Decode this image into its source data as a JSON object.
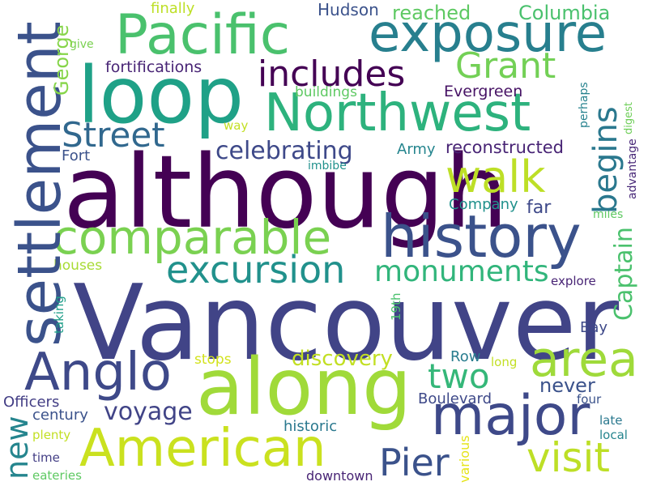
{
  "words": [
    {
      "text": "Vancouver",
      "color": "#414487"
    },
    {
      "text": "although",
      "color": "#440154"
    },
    {
      "text": "along",
      "color": "#a0da39"
    },
    {
      "text": "loop",
      "color": "#1fa187"
    },
    {
      "text": "settlement",
      "color": "#3b528b"
    },
    {
      "text": "history",
      "color": "#3b528b"
    },
    {
      "text": "Pacific",
      "color": "#4ac16d"
    },
    {
      "text": "exposure",
      "color": "#277f8e"
    },
    {
      "text": "Northwest",
      "color": "#2db27d"
    },
    {
      "text": "American",
      "color": "#cae11f"
    },
    {
      "text": "major",
      "color": "#3e4989"
    },
    {
      "text": "comparable",
      "color": "#7ad151"
    },
    {
      "text": "Anglo",
      "color": "#3e4989"
    },
    {
      "text": "area",
      "color": "#9fda3a"
    },
    {
      "text": "walk",
      "color": "#bddf26"
    },
    {
      "text": "excursion",
      "color": "#21918c"
    },
    {
      "text": "includes",
      "color": "#440154"
    },
    {
      "text": "Grant",
      "color": "#73d056"
    },
    {
      "text": "visit",
      "color": "#bddf26"
    },
    {
      "text": "Pier",
      "color": "#3b528b"
    },
    {
      "text": "two",
      "color": "#35b779"
    },
    {
      "text": "Street",
      "color": "#31688e"
    },
    {
      "text": "monuments",
      "color": "#31b57b"
    },
    {
      "text": "begins",
      "color": "#2a788e"
    },
    {
      "text": "Captain",
      "color": "#4ac16d"
    },
    {
      "text": "new",
      "color": "#25858e"
    },
    {
      "text": "voyage",
      "color": "#414487"
    },
    {
      "text": "celebrating",
      "color": "#3e4989"
    },
    {
      "text": "discovery",
      "color": "#c2df23"
    },
    {
      "text": "George",
      "color": "#86d549"
    },
    {
      "text": "reconstructed",
      "color": "#482475"
    },
    {
      "text": "never",
      "color": "#3b528b"
    },
    {
      "text": "reached",
      "color": "#5ec962"
    },
    {
      "text": "Columbia",
      "color": "#4ac16d"
    },
    {
      "text": "Hudson",
      "color": "#3b528b"
    },
    {
      "text": "fortifications",
      "color": "#482475"
    },
    {
      "text": "Evergreen",
      "color": "#471365"
    },
    {
      "text": "Army",
      "color": "#25858e"
    },
    {
      "text": "Company",
      "color": "#21918c"
    },
    {
      "text": "far",
      "color": "#3e4989"
    },
    {
      "text": "Boulevard",
      "color": "#3e4989"
    },
    {
      "text": "Officers",
      "color": "#433e85"
    },
    {
      "text": "Row",
      "color": "#287c8e"
    },
    {
      "text": "Bay",
      "color": "#3e4989"
    },
    {
      "text": "century",
      "color": "#3b528b"
    },
    {
      "text": "historic",
      "color": "#2a788e"
    },
    {
      "text": "finally",
      "color": "#bddf26"
    },
    {
      "text": "buildings",
      "color": "#5ec962"
    },
    {
      "text": "Fort",
      "color": "#3b528b"
    },
    {
      "text": "houses",
      "color": "#a8db34"
    },
    {
      "text": "stops",
      "color": "#d2e21b"
    },
    {
      "text": "explore",
      "color": "#482475"
    },
    {
      "text": "long",
      "color": "#c2df23"
    },
    {
      "text": "four",
      "color": "#3b528b"
    },
    {
      "text": "late",
      "color": "#2a788e"
    },
    {
      "text": "local",
      "color": "#25858e"
    },
    {
      "text": "plenty",
      "color": "#c2df23"
    },
    {
      "text": "time",
      "color": "#433e85"
    },
    {
      "text": "eateries",
      "color": "#5ec962"
    },
    {
      "text": "downtown",
      "color": "#482475"
    },
    {
      "text": "various",
      "color": "#e5e419"
    },
    {
      "text": "give",
      "color": "#7ad151"
    },
    {
      "text": "way",
      "color": "#c2df23"
    },
    {
      "text": "imbibe",
      "color": "#21918c"
    },
    {
      "text": "miles",
      "color": "#5ec962"
    },
    {
      "text": "perhaps",
      "color": "#26828e"
    },
    {
      "text": "digest",
      "color": "#6ece58"
    },
    {
      "text": "advantage",
      "color": "#482878"
    },
    {
      "text": "taking",
      "color": "#1f9e89"
    },
    {
      "text": "19th",
      "color": "#4ac16d"
    }
  ]
}
